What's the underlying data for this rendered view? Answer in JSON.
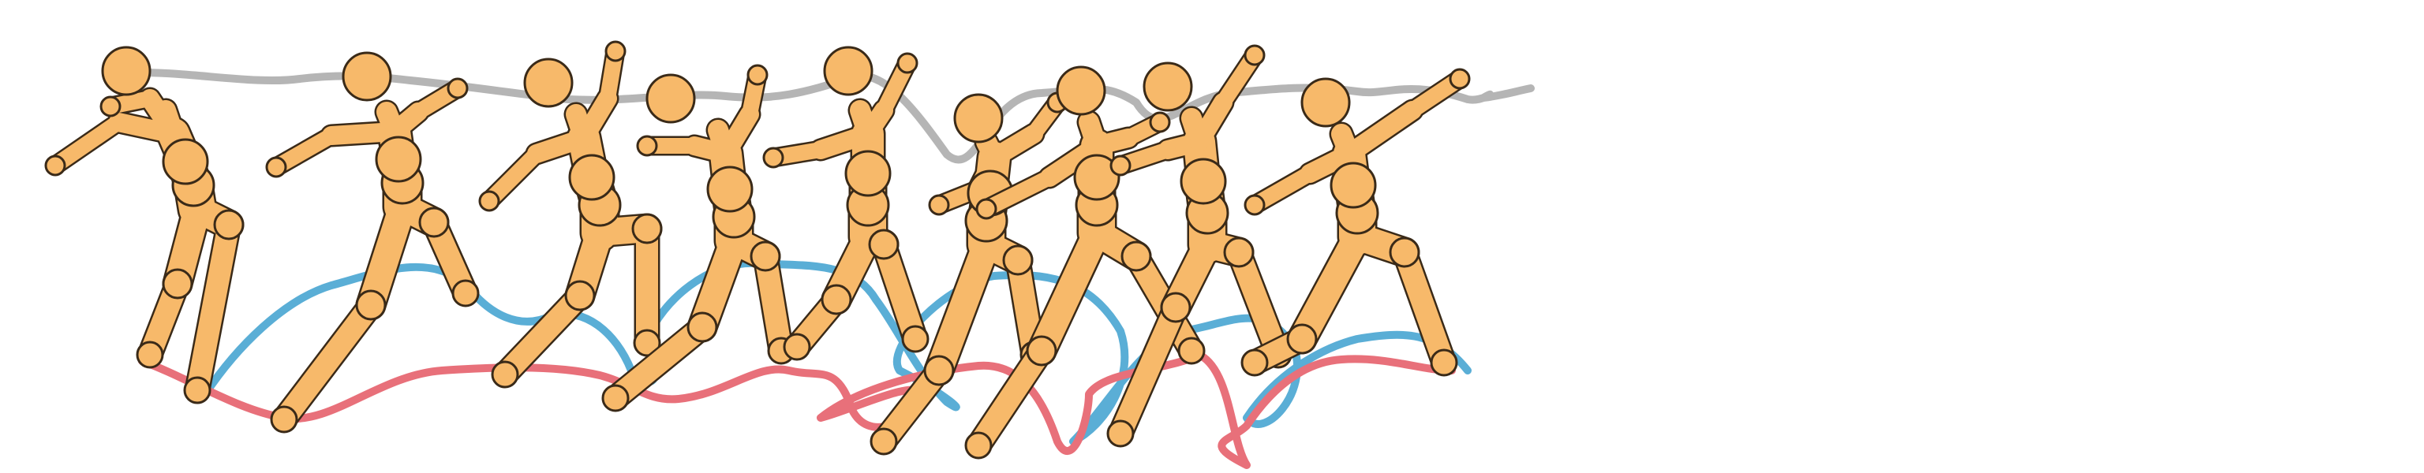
{
  "figure": {
    "subject": "humanoid-running-motion-sequence",
    "frame_count": 9,
    "colors": {
      "body": "#f7b96a",
      "outline": "#3a2a18",
      "head_trajectory": "#b5b5b5",
      "left_foot_trajectory": "#5aaed6",
      "right_foot_trajectory": "#e8707a",
      "background": "#ffffff"
    },
    "trajectories": [
      {
        "name": "head-trajectory",
        "color_key": "head_trajectory"
      },
      {
        "name": "left-foot-trajectory",
        "color_key": "left_foot_trajectory"
      },
      {
        "name": "right-foot-trajectory",
        "color_key": "right_foot_trajectory"
      }
    ]
  }
}
